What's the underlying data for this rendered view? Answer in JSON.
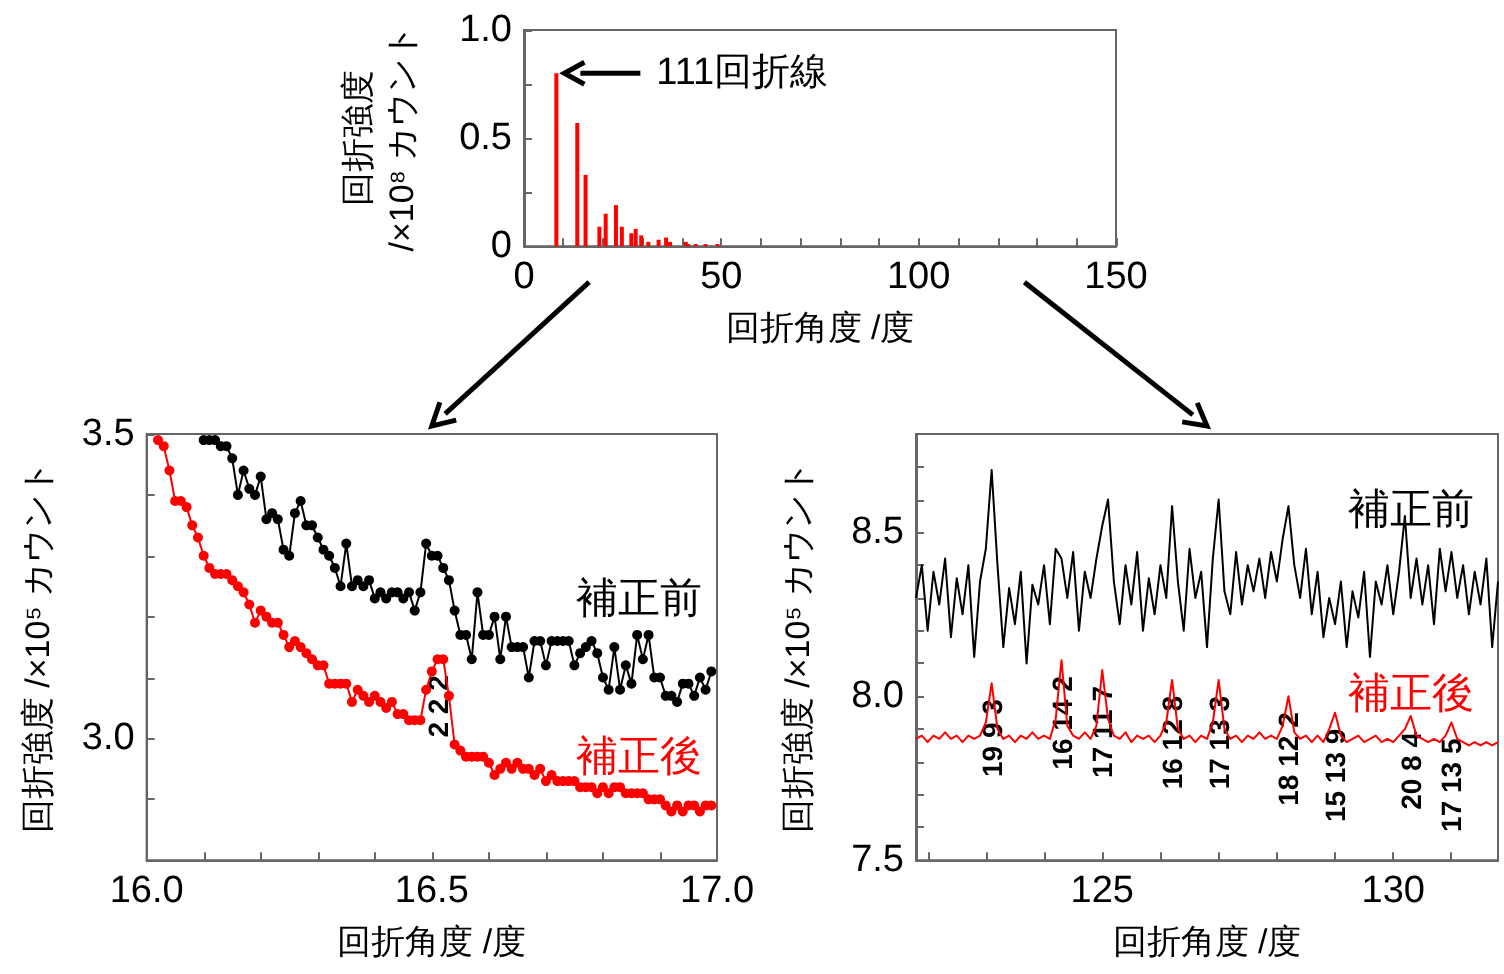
{
  "chart_data": [
    {
      "type": "bar",
      "xlabel": "回折角度 /度",
      "ylabel": "回折強度\n/×10⁸ カウント",
      "color": "#ff0000",
      "x": [
        8.2,
        13.5,
        15.6,
        19.1,
        20.7,
        23.3,
        24.8,
        27.2,
        28.3,
        29.7,
        31.5,
        34.1,
        36.0,
        37.0,
        41.0,
        41.6,
        43.5,
        46.0,
        49.0
      ],
      "values": [
        0.8,
        0.57,
        0.33,
        0.09,
        0.15,
        0.19,
        0.09,
        0.06,
        0.08,
        0.05,
        0.02,
        0.03,
        0.04,
        0.02,
        0.02,
        0.01,
        0.01,
        0.01,
        0.01
      ],
      "xlim": [
        0,
        150
      ],
      "ylim": [
        0,
        1
      ],
      "xticks": [
        0,
        {
          "value": 10,
          "label": null
        },
        {
          "value": 20,
          "label": null
        },
        {
          "value": 30,
          "label": null
        },
        {
          "value": 40,
          "label": null
        },
        50,
        {
          "value": 60,
          "label": null
        },
        {
          "value": 70,
          "label": null
        },
        {
          "value": 80,
          "label": null
        },
        {
          "value": 90,
          "label": null
        },
        100,
        {
          "value": 110,
          "label": null
        },
        {
          "value": 120,
          "label": null
        },
        {
          "value": 130,
          "label": null
        },
        {
          "value": 140,
          "label": null
        },
        150
      ],
      "yticks": [
        0,
        {
          "value": 0.25,
          "label": null
        },
        0.5,
        {
          "value": 0.75,
          "label": null
        },
        {
          "value": 1,
          "label": "1.0"
        }
      ],
      "annotations": [
        {
          "text": "111回折線",
          "x": 8.2,
          "y": 0.8
        }
      ]
    },
    {
      "type": "line",
      "xlabel": "回折角度 /度",
      "ylabel": "回折強度 /×10⁵ カウント",
      "marker": "circle",
      "xlim": [
        16,
        17
      ],
      "ylim": [
        2.8,
        3.5
      ],
      "xticks": [
        {
          "value": 16,
          "label": "16.0"
        },
        {
          "value": 16.1,
          "label": null
        },
        {
          "value": 16.2,
          "label": null
        },
        {
          "value": 16.3,
          "label": null
        },
        {
          "value": 16.4,
          "label": null
        },
        16.5,
        {
          "value": 16.6,
          "label": null
        },
        {
          "value": 16.7,
          "label": null
        },
        {
          "value": 16.8,
          "label": null
        },
        {
          "value": 16.9,
          "label": null
        },
        {
          "value": 17,
          "label": "17.0"
        }
      ],
      "yticks": [
        {
          "value": 2.9,
          "label": null
        },
        {
          "value": 3,
          "label": "3.0"
        },
        {
          "value": 3.1,
          "label": null
        },
        {
          "value": 3.2,
          "label": null
        },
        {
          "value": 3.3,
          "label": null
        },
        {
          "value": 3.4,
          "label": null
        },
        3.5
      ],
      "series": [
        {
          "name": "補正前",
          "color": "#000000",
          "x": [
            16.1,
            16.11,
            16.12,
            16.13,
            16.14,
            16.15,
            16.16,
            16.17,
            16.18,
            16.19,
            16.2,
            16.21,
            16.22,
            16.23,
            16.24,
            16.25,
            16.26,
            16.27,
            16.28,
            16.29,
            16.3,
            16.31,
            16.32,
            16.33,
            16.34,
            16.35,
            16.36,
            16.37,
            16.38,
            16.39,
            16.4,
            16.41,
            16.42,
            16.43,
            16.44,
            16.45,
            16.46,
            16.47,
            16.48,
            16.49,
            16.5,
            16.51,
            16.52,
            16.53,
            16.54,
            16.55,
            16.56,
            16.57,
            16.58,
            16.59,
            16.6,
            16.61,
            16.62,
            16.63,
            16.64,
            16.65,
            16.66,
            16.67,
            16.68,
            16.69,
            16.7,
            16.71,
            16.72,
            16.73,
            16.74,
            16.75,
            16.76,
            16.77,
            16.78,
            16.79,
            16.8,
            16.81,
            16.82,
            16.83,
            16.84,
            16.85,
            16.86,
            16.87,
            16.88,
            16.89,
            16.9,
            16.91,
            16.92,
            16.93,
            16.94,
            16.95,
            16.96,
            16.97,
            16.98,
            16.99
          ],
          "values": [
            3.49,
            3.49,
            3.49,
            3.48,
            3.48,
            3.46,
            3.4,
            3.44,
            3.41,
            3.4,
            3.43,
            3.36,
            3.37,
            3.36,
            3.31,
            3.3,
            3.37,
            3.39,
            3.35,
            3.35,
            3.33,
            3.31,
            3.3,
            3.28,
            3.25,
            3.32,
            3.25,
            3.26,
            3.25,
            3.26,
            3.23,
            3.24,
            3.23,
            3.24,
            3.24,
            3.23,
            3.24,
            3.21,
            3.24,
            3.32,
            3.3,
            3.3,
            3.28,
            3.26,
            3.21,
            3.17,
            3.17,
            3.13,
            3.24,
            3.17,
            3.17,
            3.2,
            3.13,
            3.2,
            3.15,
            3.15,
            3.15,
            3.1,
            3.16,
            3.16,
            3.12,
            3.16,
            3.16,
            3.16,
            3.16,
            3.12,
            3.14,
            3.15,
            3.16,
            3.14,
            3.1,
            3.08,
            3.15,
            3.08,
            3.12,
            3.09,
            3.17,
            3.13,
            3.17,
            3.1,
            3.1,
            3.07,
            3.07,
            3.06,
            3.09,
            3.09,
            3.07,
            3.1,
            3.08,
            3.11
          ]
        },
        {
          "name": "補正後",
          "color": "#ff0000",
          "x": [
            16.02,
            16.03,
            16.04,
            16.05,
            16.06,
            16.07,
            16.08,
            16.09,
            16.1,
            16.11,
            16.12,
            16.13,
            16.14,
            16.15,
            16.16,
            16.17,
            16.18,
            16.19,
            16.2,
            16.21,
            16.22,
            16.23,
            16.24,
            16.25,
            16.26,
            16.27,
            16.28,
            16.29,
            16.3,
            16.31,
            16.32,
            16.33,
            16.34,
            16.35,
            16.36,
            16.37,
            16.38,
            16.39,
            16.4,
            16.41,
            16.42,
            16.43,
            16.44,
            16.45,
            16.46,
            16.47,
            16.48,
            16.49,
            16.5,
            16.51,
            16.52,
            16.53,
            16.54,
            16.55,
            16.56,
            16.57,
            16.58,
            16.59,
            16.6,
            16.61,
            16.62,
            16.63,
            16.64,
            16.65,
            16.66,
            16.67,
            16.68,
            16.69,
            16.7,
            16.71,
            16.72,
            16.73,
            16.74,
            16.75,
            16.76,
            16.77,
            16.78,
            16.79,
            16.8,
            16.81,
            16.82,
            16.83,
            16.84,
            16.85,
            16.86,
            16.87,
            16.88,
            16.89,
            16.9,
            16.91,
            16.92,
            16.93,
            16.94,
            16.95,
            16.96,
            16.97,
            16.98,
            16.99
          ],
          "values": [
            3.49,
            3.48,
            3.44,
            3.39,
            3.39,
            3.38,
            3.35,
            3.33,
            3.3,
            3.28,
            3.27,
            3.27,
            3.27,
            3.26,
            3.25,
            3.24,
            3.22,
            3.19,
            3.21,
            3.2,
            3.19,
            3.19,
            3.17,
            3.15,
            3.16,
            3.15,
            3.14,
            3.13,
            3.12,
            3.12,
            3.09,
            3.09,
            3.09,
            3.09,
            3.06,
            3.08,
            3.07,
            3.06,
            3.07,
            3.06,
            3.05,
            3.06,
            3.04,
            3.04,
            3.03,
            3.03,
            3.03,
            3.08,
            3.11,
            3.13,
            3.13,
            3.07,
            2.99,
            2.98,
            2.97,
            2.97,
            2.97,
            2.97,
            2.96,
            2.94,
            2.95,
            2.96,
            2.95,
            2.96,
            2.95,
            2.95,
            2.94,
            2.95,
            2.93,
            2.94,
            2.93,
            2.93,
            2.93,
            2.93,
            2.92,
            2.92,
            2.92,
            2.91,
            2.92,
            2.91,
            2.92,
            2.92,
            2.91,
            2.91,
            2.91,
            2.91,
            2.9,
            2.9,
            2.9,
            2.89,
            2.88,
            2.89,
            2.88,
            2.89,
            2.89,
            2.88,
            2.89,
            2.89
          ]
        }
      ],
      "annotations": [
        {
          "text": "2 2 2",
          "x": 16.51,
          "y": 3.13
        }
      ]
    },
    {
      "type": "line",
      "xlabel": "回折角度 /度",
      "ylabel": "回折強度 /×10⁵ カウント",
      "marker": "none",
      "xlim": [
        121.8,
        131.8
      ],
      "ylim": [
        7.5,
        8.8
      ],
      "xticks": [
        {
          "value": 122,
          "label": null
        },
        {
          "value": 123,
          "label": null
        },
        {
          "value": 124,
          "label": null
        },
        125,
        {
          "value": 126,
          "label": null
        },
        {
          "value": 127,
          "label": null
        },
        {
          "value": 128,
          "label": null
        },
        {
          "value": 129,
          "label": null
        },
        130,
        {
          "value": 131,
          "label": null
        }
      ],
      "yticks": [
        7.5,
        {
          "value": 7.6,
          "label": null
        },
        {
          "value": 7.7,
          "label": null
        },
        {
          "value": 7.8,
          "label": null
        },
        {
          "value": 7.9,
          "label": null
        },
        {
          "value": 8,
          "label": "8.0"
        },
        {
          "value": 8.1,
          "label": null
        },
        {
          "value": 8.2,
          "label": null
        },
        {
          "value": 8.3,
          "label": null
        },
        {
          "value": 8.4,
          "label": null
        },
        8.5,
        {
          "value": 8.6,
          "label": null
        },
        {
          "value": 8.7,
          "label": null
        }
      ],
      "x": [
        121.8,
        121.9,
        122.0,
        122.1,
        122.2,
        122.3,
        122.4,
        122.5,
        122.6,
        122.7,
        122.8,
        122.9,
        123.0,
        123.1,
        123.2,
        123.3,
        123.4,
        123.5,
        123.6,
        123.7,
        123.8,
        123.9,
        124.0,
        124.1,
        124.2,
        124.3,
        124.4,
        124.5,
        124.6,
        124.7,
        124.8,
        124.9,
        125.0,
        125.1,
        125.2,
        125.3,
        125.4,
        125.5,
        125.6,
        125.7,
        125.8,
        125.9,
        126.0,
        126.1,
        126.2,
        126.3,
        126.4,
        126.5,
        126.6,
        126.7,
        126.8,
        126.9,
        127.0,
        127.1,
        127.2,
        127.3,
        127.4,
        127.5,
        127.6,
        127.7,
        127.8,
        127.9,
        128.0,
        128.1,
        128.2,
        128.3,
        128.4,
        128.5,
        128.6,
        128.7,
        128.8,
        128.9,
        129.0,
        129.1,
        129.2,
        129.3,
        129.4,
        129.5,
        129.6,
        129.7,
        129.8,
        129.9,
        130.0,
        130.1,
        130.2,
        130.3,
        130.4,
        130.5,
        130.6,
        130.7,
        130.8,
        130.9,
        131.0,
        131.1,
        131.2,
        131.3,
        131.4,
        131.5,
        131.6,
        131.7,
        131.8
      ],
      "series": [
        {
          "name": "補正前",
          "color": "#000000",
          "values": [
            8.3,
            8.4,
            8.2,
            8.38,
            8.28,
            8.42,
            8.18,
            8.36,
            8.25,
            8.4,
            8.12,
            8.35,
            8.45,
            8.69,
            8.4,
            8.15,
            8.33,
            8.22,
            8.38,
            8.1,
            8.34,
            8.28,
            8.4,
            8.22,
            8.45,
            8.42,
            8.3,
            8.44,
            8.2,
            8.38,
            8.3,
            8.42,
            8.52,
            8.6,
            8.35,
            8.22,
            8.4,
            8.28,
            8.44,
            8.2,
            8.36,
            8.25,
            8.4,
            8.3,
            8.58,
            8.35,
            8.2,
            8.45,
            8.3,
            8.38,
            8.15,
            8.42,
            8.6,
            8.32,
            8.25,
            8.44,
            8.28,
            8.4,
            8.32,
            8.42,
            8.3,
            8.44,
            8.35,
            8.48,
            8.58,
            8.4,
            8.3,
            8.45,
            8.25,
            8.38,
            8.18,
            8.3,
            8.22,
            8.35,
            8.15,
            8.32,
            8.24,
            8.38,
            8.12,
            8.35,
            8.28,
            8.4,
            8.25,
            8.38,
            8.55,
            8.3,
            8.42,
            8.28,
            8.4,
            8.22,
            8.45,
            8.32,
            8.44,
            8.3,
            8.4,
            8.25,
            8.38,
            8.28,
            8.42,
            8.15,
            8.35
          ]
        },
        {
          "name": "補正後",
          "color": "#ff0000",
          "values": [
            7.87,
            7.88,
            7.86,
            7.88,
            7.87,
            7.89,
            7.87,
            7.88,
            7.86,
            7.88,
            7.87,
            7.88,
            7.92,
            8.04,
            7.9,
            7.87,
            7.88,
            7.86,
            7.88,
            7.87,
            7.89,
            7.87,
            7.88,
            7.87,
            7.93,
            8.11,
            7.91,
            7.88,
            7.87,
            7.89,
            7.87,
            7.91,
            8.08,
            7.93,
            7.88,
            7.87,
            7.89,
            7.86,
            7.88,
            7.87,
            7.88,
            7.86,
            7.88,
            7.92,
            8.05,
            7.9,
            7.87,
            7.88,
            7.86,
            7.88,
            7.87,
            7.92,
            8.05,
            7.9,
            7.87,
            7.88,
            7.86,
            7.88,
            7.87,
            7.89,
            7.87,
            7.88,
            7.87,
            7.91,
            8.0,
            7.89,
            7.87,
            7.88,
            7.86,
            7.88,
            7.86,
            7.9,
            7.95,
            7.88,
            7.86,
            7.87,
            7.88,
            7.86,
            7.87,
            7.88,
            7.86,
            7.87,
            7.86,
            7.88,
            7.9,
            7.94,
            7.88,
            7.87,
            7.86,
            7.87,
            7.86,
            7.88,
            7.92,
            7.87,
            7.86,
            7.85,
            7.86,
            7.85,
            7.86,
            7.85,
            7.86
          ]
        }
      ],
      "annotations": [
        {
          "text": "19 9 3",
          "x": 123.1,
          "y": 8.04
        },
        {
          "text": "16 14 2",
          "x": 124.3,
          "y": 8.11
        },
        {
          "text": "17 11 7",
          "x": 125.0,
          "y": 8.08
        },
        {
          "text": "16 12 8",
          "x": 126.2,
          "y": 8.05
        },
        {
          "text": "17 13 3",
          "x": 127.0,
          "y": 8.05
        },
        {
          "text": "18 12 2",
          "x": 128.2,
          "y": 8.0
        },
        {
          "text": "15 13 9",
          "x": 129.0,
          "y": 7.95
        },
        {
          "text": "20 8 4",
          "x": 130.3,
          "y": 7.94
        },
        {
          "text": "17 13 5",
          "x": 131.0,
          "y": 7.92
        }
      ]
    }
  ]
}
